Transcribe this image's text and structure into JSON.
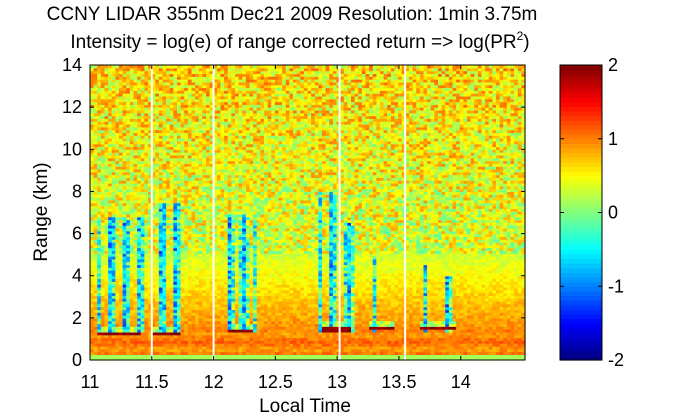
{
  "chart_data": {
    "type": "heatmap",
    "title": "CCNY LIDAR 355nm Dec21 2009 Resolution: 1min 3.75m",
    "subtitle_prefix": "Intensity = log(e) of range corrected return => log(PR",
    "subtitle_sup": "2",
    "subtitle_suffix": ")",
    "xlabel": "Local Time",
    "ylabel": "Range (km)",
    "xlim": [
      11.0,
      14.52
    ],
    "ylim": [
      0,
      14
    ],
    "xticks": [
      11,
      11.5,
      12,
      12.5,
      13,
      13.5,
      14
    ],
    "xtick_labels": [
      "11",
      "11.5",
      "12",
      "12.5",
      "13",
      "13.5",
      "14"
    ],
    "yticks": [
      0,
      2,
      4,
      6,
      8,
      10,
      12,
      14
    ],
    "ytick_labels": [
      "0",
      "2",
      "4",
      "6",
      "8",
      "10",
      "12",
      "14"
    ],
    "colorbar": {
      "range": [
        -2,
        2
      ],
      "ticks": [
        -2,
        -1,
        0,
        1,
        2
      ],
      "tick_labels": [
        "-2",
        "-1",
        "0",
        "1",
        "2"
      ],
      "colormap": "jet"
    },
    "data_gaps_local_time": [
      11.5,
      12.0,
      13.02,
      13.55
    ],
    "cloud_layers": [
      {
        "start": 11.05,
        "end": 11.42,
        "base_km": 1.25
      },
      {
        "start": 11.5,
        "end": 11.72,
        "base_km": 1.25
      },
      {
        "start": 12.12,
        "end": 12.33,
        "base_km": 1.35
      },
      {
        "start": 12.87,
        "end": 13.1,
        "base_km": 1.45
      },
      {
        "start": 13.25,
        "end": 13.45,
        "base_km": 1.5
      },
      {
        "start": 13.68,
        "end": 13.96,
        "base_km": 1.5
      }
    ],
    "low_signal_columns": [
      {
        "start": 11.07,
        "end": 11.45,
        "top_km": 6.8
      },
      {
        "start": 11.52,
        "end": 11.73,
        "top_km": 7.5
      },
      {
        "start": 12.12,
        "end": 12.34,
        "top_km": 7.0
      },
      {
        "start": 12.86,
        "end": 12.99,
        "top_km": 8.0
      },
      {
        "start": 13.05,
        "end": 13.15,
        "top_km": 6.5
      },
      {
        "start": 13.3,
        "end": 13.35,
        "top_km": 5.0
      },
      {
        "start": 13.66,
        "end": 13.74,
        "top_km": 4.5
      },
      {
        "start": 13.88,
        "end": 13.93,
        "top_km": 4.0
      }
    ]
  }
}
